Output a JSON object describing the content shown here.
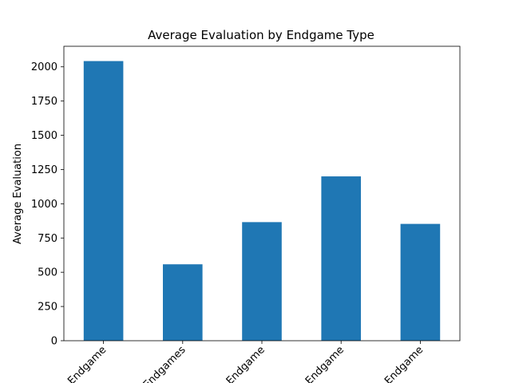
{
  "chart_data": {
    "type": "bar",
    "title": "Average Evaluation by Endgame Type",
    "xlabel": "",
    "ylabel": "Average Evaluation",
    "categories": [
      "Endgame",
      "Endgames",
      "Endgame",
      "Endgame",
      "Endgame"
    ],
    "values": [
      2042,
      558,
      866,
      1200,
      853
    ],
    "ylim": [
      0,
      2150
    ],
    "yticks": [
      0,
      250,
      500,
      750,
      1000,
      1250,
      1500,
      1750,
      2000
    ],
    "bar_color": "#1f77b4",
    "grid": false,
    "legend": "none",
    "xtick_rotation_deg": 45
  }
}
